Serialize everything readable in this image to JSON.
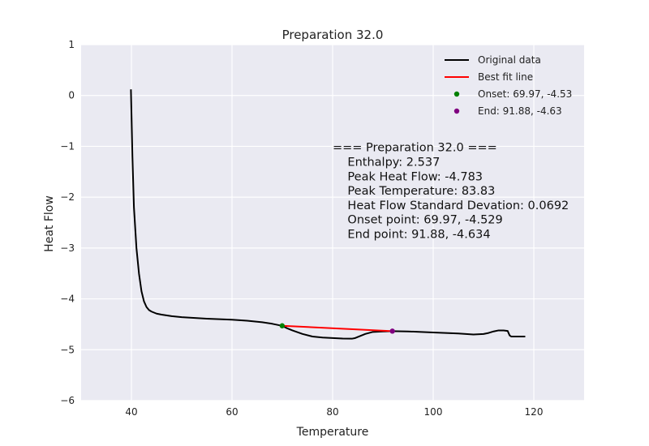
{
  "chart_data": {
    "type": "line",
    "title": "Preparation 32.0",
    "xlabel": "Temperature",
    "ylabel": "Heat Flow",
    "xlim": [
      30,
      130
    ],
    "ylim": [
      -6,
      1
    ],
    "xticks": [
      40,
      60,
      80,
      100,
      120
    ],
    "yticks": [
      1,
      0,
      -1,
      -2,
      -3,
      -4,
      -5,
      -6
    ],
    "xtick_labels": [
      "40",
      "60",
      "80",
      "100",
      "120"
    ],
    "ytick_labels": [
      "1",
      "0",
      "−1",
      "−2",
      "−3",
      "−4",
      "−5",
      "−6"
    ],
    "grid": true,
    "legend": "top-right",
    "colors": {
      "background": "#eaeaf2",
      "grid": "#ffffff",
      "original": "#000000",
      "fit": "#ff0000",
      "onset": "#008000",
      "end": "#800080"
    },
    "series": [
      {
        "name": "Original data",
        "kind": "line",
        "x": [
          39.9,
          40.2,
          40.5,
          41.0,
          41.5,
          42.0,
          42.5,
          43.0,
          43.5,
          44.0,
          44.5,
          45.0,
          46.0,
          48.0,
          50.0,
          55.0,
          60.0,
          63.0,
          66.0,
          68.0,
          69.97,
          71.0,
          72.0,
          74.0,
          76.0,
          78.0,
          80.0,
          82.0,
          83.83,
          84.5,
          85.5,
          86.5,
          88.0,
          90.0,
          91.88,
          95.0,
          100.0,
          105.0,
          108.0,
          110.0,
          111.0,
          112.0,
          113.0,
          114.0,
          114.8,
          115.2,
          115.5,
          116.0,
          117.0,
          118.3
        ],
        "y": [
          0.12,
          -1.2,
          -2.2,
          -3.0,
          -3.5,
          -3.85,
          -4.05,
          -4.16,
          -4.22,
          -4.25,
          -4.27,
          -4.29,
          -4.31,
          -4.34,
          -4.36,
          -4.39,
          -4.41,
          -4.43,
          -4.46,
          -4.49,
          -4.53,
          -4.58,
          -4.62,
          -4.69,
          -4.74,
          -4.76,
          -4.77,
          -4.78,
          -4.783,
          -4.77,
          -4.73,
          -4.69,
          -4.65,
          -4.64,
          -4.634,
          -4.64,
          -4.66,
          -4.68,
          -4.7,
          -4.69,
          -4.67,
          -4.64,
          -4.62,
          -4.62,
          -4.63,
          -4.72,
          -4.74,
          -4.74,
          -4.74,
          -4.74
        ]
      },
      {
        "name": "Best fit line",
        "kind": "line",
        "x": [
          69.97,
          91.88
        ],
        "y": [
          -4.529,
          -4.634
        ]
      },
      {
        "name": "Onset: 69.97, -4.53",
        "kind": "point",
        "x": [
          69.97
        ],
        "y": [
          -4.529
        ]
      },
      {
        "name": "End: 91.88, -4.63",
        "kind": "point",
        "x": [
          91.88
        ],
        "y": [
          -4.634
        ]
      }
    ],
    "annotation": {
      "x": 80,
      "y": -1.1,
      "lines": [
        "=== Preparation 32.0 ===",
        "    Enthalpy: 2.537",
        "    Peak Heat Flow: -4.783",
        "    Peak Temperature: 83.83",
        "    Heat Flow Standard Devation: 0.0692",
        "    Onset point: 69.97, -4.529",
        "    End point: 91.88, -4.634"
      ]
    }
  }
}
